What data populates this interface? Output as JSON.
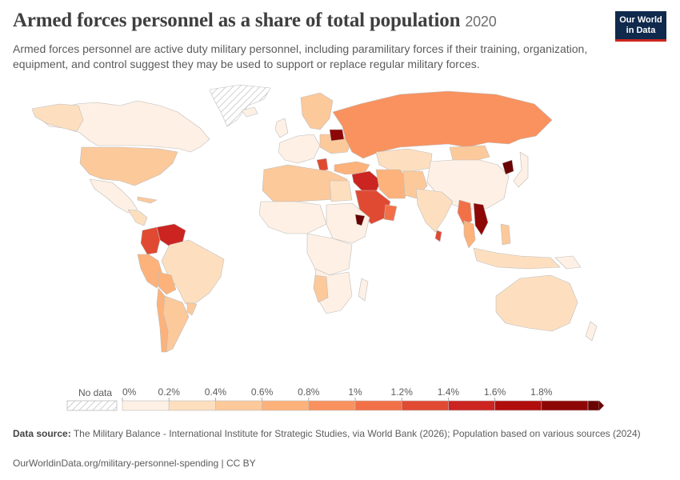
{
  "header": {
    "title": "Armed forces personnel as a share of total population",
    "year": "2020",
    "subtitle": "Armed forces personnel are active duty military personnel, including paramilitary forces if their training, organization, equipment, and control suggest they may be used to support or replace regular military forces."
  },
  "logo": {
    "line1": "Our World",
    "line2": "in Data"
  },
  "legend": {
    "no_data_label": "No data",
    "ticks": [
      "0%",
      "0.2%",
      "0.4%",
      "0.6%",
      "0.8%",
      "1%",
      "1.2%",
      "1.4%",
      "1.6%",
      "1.8%"
    ],
    "colors": [
      "#fef0e4",
      "#fddfbf",
      "#fcc99b",
      "#fcb27a",
      "#f9925e",
      "#f27048",
      "#e04a32",
      "#cb2421",
      "#b00d0d",
      "#8e0707",
      "#6a0303"
    ]
  },
  "footer": {
    "source_label": "Data source:",
    "source_text": "The Military Balance - International Institute for Strategic Studies, via World Bank (2026); Population based on various sources (2024)",
    "url_text": "OurWorldinData.org/military-personnel-spending | CC BY"
  }
}
